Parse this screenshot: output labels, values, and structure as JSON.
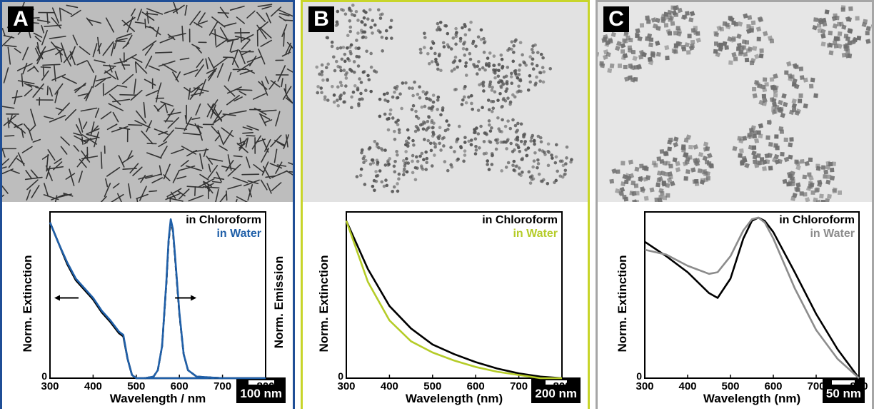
{
  "panels": [
    {
      "letter": "A",
      "scale_label": "100 nm",
      "border": "#1f4e96"
    },
    {
      "letter": "B",
      "scale_label": "200 nm",
      "border": "#c8d52a"
    },
    {
      "letter": "C",
      "scale_label": "50 nm",
      "border": "#a6a6a6"
    }
  ],
  "colors": {
    "chloroform": "#000000",
    "water_A": "#1f5fa8",
    "water_B": "#b5cc28",
    "water_C": "#8c8c8c"
  },
  "chart_data": [
    {
      "type": "line",
      "xlabel": "Wavelength / nm",
      "ylabel": "Norm. Extinction",
      "ylabel_right": "Norm. Emission",
      "xlim": [
        300,
        800
      ],
      "xticks": [
        300,
        400,
        500,
        600,
        700,
        800
      ],
      "ytick_label": "0",
      "legend": [
        "in Chloroform",
        "in Water"
      ],
      "legend_position": "top-right",
      "series": [
        {
          "name": "in Chloroform",
          "kind": "extinction",
          "x": [
            300,
            320,
            340,
            360,
            380,
            400,
            420,
            440,
            460,
            470,
            480,
            490,
            500,
            550,
            600,
            800
          ],
          "y": [
            0.97,
            0.84,
            0.71,
            0.61,
            0.55,
            0.49,
            0.41,
            0.35,
            0.28,
            0.26,
            0.12,
            0.02,
            0.0,
            0.0,
            0.0,
            0.0
          ]
        },
        {
          "name": "in Water",
          "kind": "extinction",
          "x": [
            300,
            320,
            340,
            360,
            380,
            400,
            420,
            440,
            460,
            470,
            480,
            490,
            500,
            550,
            600,
            800
          ],
          "y": [
            0.97,
            0.84,
            0.72,
            0.62,
            0.56,
            0.5,
            0.42,
            0.36,
            0.29,
            0.27,
            0.12,
            0.02,
            0.0,
            0.0,
            0.0,
            0.0
          ]
        },
        {
          "name": "in Chloroform",
          "kind": "emission",
          "x": [
            520,
            540,
            550,
            560,
            570,
            575,
            580,
            585,
            590,
            600,
            610,
            620,
            640,
            700
          ],
          "y": [
            0.0,
            0.01,
            0.05,
            0.2,
            0.6,
            0.85,
            0.98,
            0.92,
            0.75,
            0.4,
            0.15,
            0.05,
            0.01,
            0.0
          ]
        },
        {
          "name": "in Water",
          "kind": "emission",
          "x": [
            520,
            540,
            550,
            560,
            570,
            575,
            580,
            585,
            590,
            600,
            610,
            620,
            640,
            700
          ],
          "y": [
            0.0,
            0.01,
            0.05,
            0.2,
            0.61,
            0.86,
            0.99,
            0.93,
            0.76,
            0.41,
            0.15,
            0.05,
            0.01,
            0.0
          ]
        }
      ]
    },
    {
      "type": "line",
      "xlabel": "Wavelength (nm)",
      "ylabel": "Norm. Extinction",
      "xlim": [
        300,
        800
      ],
      "xticks": [
        300,
        400,
        500,
        600,
        700,
        800
      ],
      "ytick_label": "0",
      "legend": [
        "in Chloroform",
        "in Water"
      ],
      "legend_position": "top-right",
      "series": [
        {
          "name": "in Chloroform",
          "x": [
            300,
            350,
            400,
            450,
            500,
            550,
            600,
            650,
            700,
            750,
            800
          ],
          "y": [
            0.98,
            0.68,
            0.45,
            0.31,
            0.21,
            0.15,
            0.1,
            0.06,
            0.03,
            0.01,
            0.0
          ]
        },
        {
          "name": "in Water",
          "x": [
            300,
            350,
            400,
            450,
            500,
            550,
            600,
            650,
            700,
            750,
            800
          ],
          "y": [
            0.98,
            0.6,
            0.36,
            0.23,
            0.16,
            0.11,
            0.07,
            0.04,
            0.02,
            0.0,
            0.0
          ]
        }
      ]
    },
    {
      "type": "line",
      "xlabel": "Wavelength (nm)",
      "ylabel": "Norm. Extinction",
      "xlim": [
        300,
        800
      ],
      "xticks": [
        300,
        400,
        500,
        600,
        700,
        800
      ],
      "ytick_label": "0",
      "legend": [
        "in Chloroform",
        "in Water"
      ],
      "legend_position": "top-right",
      "series": [
        {
          "name": "in Chloroform",
          "x": [
            300,
            350,
            400,
            450,
            470,
            500,
            530,
            550,
            565,
            580,
            600,
            650,
            700,
            750,
            800
          ],
          "y": [
            0.85,
            0.76,
            0.66,
            0.53,
            0.5,
            0.62,
            0.87,
            0.98,
            1.0,
            0.98,
            0.91,
            0.66,
            0.4,
            0.18,
            0.0
          ]
        },
        {
          "name": "in Water",
          "x": [
            300,
            350,
            400,
            450,
            470,
            500,
            530,
            550,
            565,
            580,
            600,
            650,
            700,
            750,
            800
          ],
          "y": [
            0.8,
            0.77,
            0.7,
            0.65,
            0.66,
            0.76,
            0.92,
            0.99,
            1.0,
            0.97,
            0.87,
            0.56,
            0.3,
            0.12,
            0.0
          ]
        }
      ]
    }
  ]
}
